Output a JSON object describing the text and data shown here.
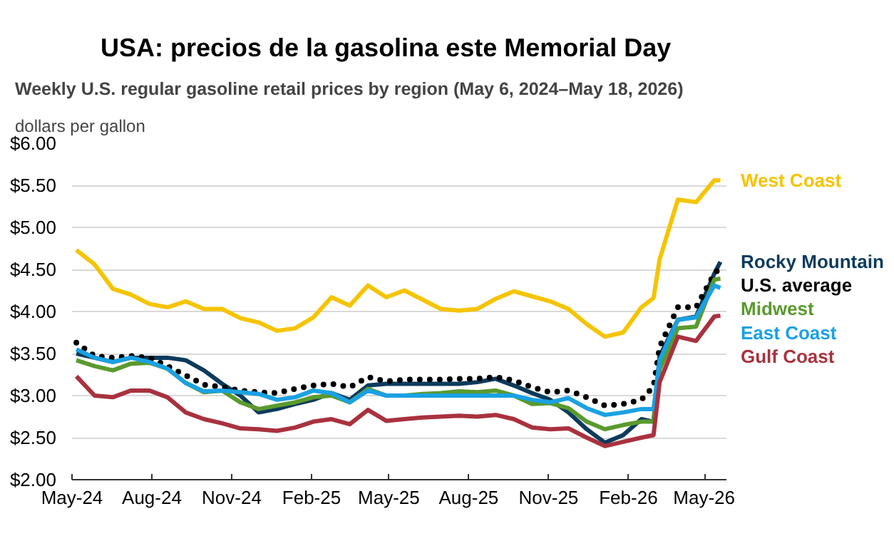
{
  "chart_data": {
    "type": "line",
    "title": "USA:  precios de la gasolina este Memorial Day",
    "subtitle": "Weekly U.S. regular gasoline retail prices by region (May 6, 2024–May 18, 2026)",
    "ylabel": "dollars per gallon",
    "x": [
      "2024-05-06",
      "2024-05-27",
      "2024-06-17",
      "2024-07-08",
      "2024-07-29",
      "2024-08-19",
      "2024-09-09",
      "2024-09-30",
      "2024-10-21",
      "2024-11-11",
      "2024-12-02",
      "2024-12-23",
      "2025-01-13",
      "2025-02-03",
      "2025-02-24",
      "2025-03-17",
      "2025-04-07",
      "2025-04-28",
      "2025-05-19",
      "2025-06-09",
      "2025-06-30",
      "2025-07-21",
      "2025-08-11",
      "2025-09-01",
      "2025-09-22",
      "2025-10-13",
      "2025-11-03",
      "2025-11-24",
      "2025-12-15",
      "2026-01-05",
      "2026-01-26",
      "2026-02-16",
      "2026-03-02",
      "2026-03-09",
      "2026-03-30",
      "2026-04-20",
      "2026-05-11",
      "2026-05-18"
    ],
    "series": [
      {
        "name": "West Coast",
        "color": "#f5c400",
        "values": [
          4.73,
          4.56,
          4.27,
          4.2,
          4.09,
          4.05,
          4.12,
          4.03,
          4.03,
          3.92,
          3.87,
          3.77,
          3.8,
          3.93,
          4.17,
          4.07,
          4.31,
          4.17,
          4.25,
          4.14,
          4.03,
          4.01,
          4.03,
          4.15,
          4.24,
          4.18,
          4.12,
          4.03,
          3.85,
          3.7,
          3.75,
          4.05,
          4.16,
          4.62,
          5.33,
          5.3,
          5.56,
          5.56
        ]
      },
      {
        "name": "Rocky Mountain",
        "color": "#0d3b5c",
        "values": [
          3.5,
          3.45,
          3.4,
          3.45,
          3.45,
          3.45,
          3.42,
          3.3,
          3.14,
          3.0,
          2.8,
          2.84,
          2.9,
          2.95,
          3.03,
          2.95,
          3.12,
          3.14,
          3.14,
          3.14,
          3.14,
          3.14,
          3.16,
          3.2,
          3.12,
          3.03,
          2.95,
          2.8,
          2.6,
          2.44,
          2.53,
          2.72,
          2.69,
          3.47,
          3.9,
          3.94,
          4.45,
          4.59
        ]
      },
      {
        "name": "U.S. average",
        "color": "#000000",
        "line_style": "dotted",
        "values": [
          3.63,
          3.47,
          3.45,
          3.47,
          3.45,
          3.35,
          3.24,
          3.13,
          3.1,
          3.06,
          3.04,
          3.03,
          3.08,
          3.12,
          3.14,
          3.1,
          3.22,
          3.17,
          3.19,
          3.19,
          3.19,
          3.2,
          3.2,
          3.22,
          3.18,
          3.1,
          3.04,
          3.06,
          2.98,
          2.88,
          2.9,
          2.95,
          3.11,
          3.58,
          4.05,
          4.05,
          4.45,
          4.52
        ]
      },
      {
        "name": "Midwest",
        "color": "#5a9a2e",
        "values": [
          3.42,
          3.35,
          3.3,
          3.38,
          3.39,
          3.32,
          3.15,
          3.04,
          3.06,
          2.92,
          2.84,
          2.88,
          2.92,
          2.98,
          3.0,
          2.92,
          3.08,
          3.0,
          3.0,
          3.02,
          3.03,
          3.05,
          3.04,
          3.06,
          3.0,
          2.9,
          2.91,
          2.85,
          2.69,
          2.6,
          2.65,
          2.69,
          2.69,
          3.31,
          3.8,
          3.82,
          4.38,
          4.39
        ]
      },
      {
        "name": "East Coast",
        "color": "#1ba1e2",
        "values": [
          3.55,
          3.45,
          3.4,
          3.45,
          3.4,
          3.32,
          3.15,
          3.05,
          3.06,
          3.04,
          3.02,
          2.95,
          2.98,
          3.06,
          3.03,
          2.92,
          3.06,
          3.0,
          3.0,
          3.0,
          3.0,
          3.0,
          3.0,
          3.0,
          3.0,
          2.95,
          2.92,
          2.97,
          2.85,
          2.77,
          2.8,
          2.84,
          2.84,
          3.42,
          3.9,
          3.93,
          4.31,
          4.28
        ]
      },
      {
        "name": "Gulf Coast",
        "color": "#a8323e",
        "values": [
          3.23,
          3.0,
          2.98,
          3.06,
          3.06,
          2.98,
          2.8,
          2.72,
          2.67,
          2.61,
          2.6,
          2.58,
          2.62,
          2.69,
          2.72,
          2.66,
          2.83,
          2.7,
          2.72,
          2.74,
          2.75,
          2.76,
          2.75,
          2.77,
          2.72,
          2.62,
          2.6,
          2.61,
          2.5,
          2.4,
          2.45,
          2.5,
          2.53,
          3.16,
          3.7,
          3.65,
          3.94,
          3.95
        ]
      }
    ],
    "line_style": "solid",
    "marker": "none",
    "grid": "y",
    "xlim": [
      "2024-05-01",
      "2026-05-25"
    ],
    "xticks": [
      {
        "value": "2024-05-01",
        "label": "May-24"
      },
      {
        "value": "2024-08-01",
        "label": "Aug-24"
      },
      {
        "value": "2024-11-01",
        "label": "Nov-24"
      },
      {
        "value": "2025-02-01",
        "label": "Feb-25"
      },
      {
        "value": "2025-05-01",
        "label": "May-25"
      },
      {
        "value": "2025-08-01",
        "label": "Aug-25"
      },
      {
        "value": "2025-11-01",
        "label": "Nov-25"
      },
      {
        "value": "2026-02-01",
        "label": "Feb-26"
      },
      {
        "value": "2026-05-01",
        "label": "May-26"
      }
    ],
    "ylim": [
      2,
      6
    ],
    "yticks": [
      {
        "value": 2,
        "label": "$2.00"
      },
      {
        "value": 2.5,
        "label": "$2.50"
      },
      {
        "value": 3,
        "label": "$3.00"
      },
      {
        "value": 3.5,
        "label": "$3.50"
      },
      {
        "value": 4,
        "label": "$4.00"
      },
      {
        "value": 4.5,
        "label": "$4.50"
      },
      {
        "value": 5,
        "label": "$5.00"
      },
      {
        "value": 5.5,
        "label": "$5.50"
      },
      {
        "value": 6,
        "label": "$6.00"
      }
    ]
  }
}
